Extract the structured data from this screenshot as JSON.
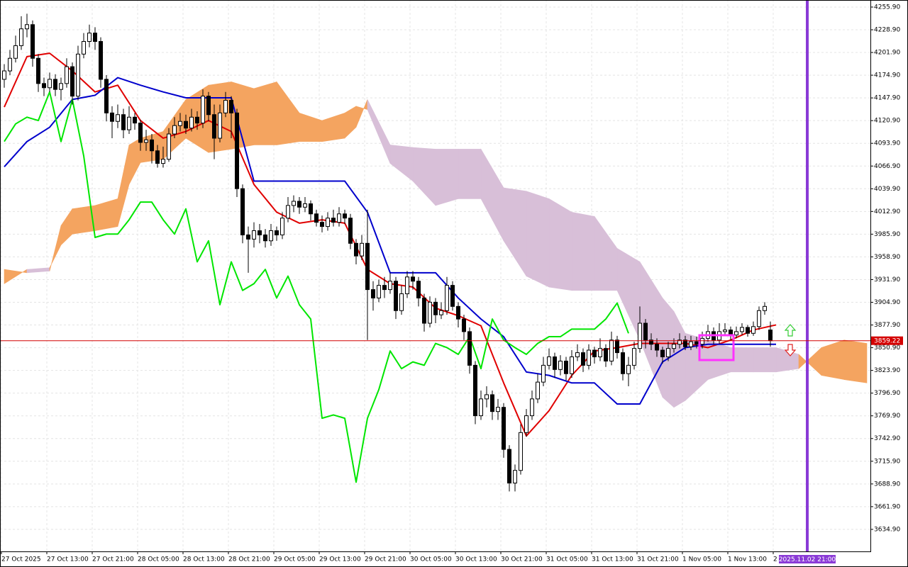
{
  "chart_data": {
    "type": "candlestick",
    "xlim": [
      -0.25,
      153.125
    ],
    "ylim": [
      3608.7,
      4264.3
    ],
    "grid": true,
    "up_color": "#ffffff",
    "down_color": "#000000",
    "xticks": [
      {
        "value": 0,
        "label": "27 Oct 2025"
      },
      {
        "value": 8,
        "label": "27 Oct 13:00"
      },
      {
        "value": 16,
        "label": "27 Oct 21:00"
      },
      {
        "value": 24,
        "label": "28 Oct 05:00"
      },
      {
        "value": 32,
        "label": "28 Oct 13:00"
      },
      {
        "value": 40,
        "label": "28 Oct 21:00"
      },
      {
        "value": 48,
        "label": "29 Oct 05:00"
      },
      {
        "value": 56,
        "label": "29 Oct 13:00"
      },
      {
        "value": 64,
        "label": "29 Oct 21:00"
      },
      {
        "value": 72,
        "label": "30 Oct 05:00"
      },
      {
        "value": 80,
        "label": "30 Oct 13:00"
      },
      {
        "value": 88,
        "label": "30 Oct 21:00"
      },
      {
        "value": 96,
        "label": "31 Oct 05:00"
      },
      {
        "value": 104,
        "label": "31 Oct 13:00"
      },
      {
        "value": 112,
        "label": "31 Oct 21:00"
      },
      {
        "value": 120,
        "label": "1 Nov 05:00"
      },
      {
        "value": 128,
        "label": "1 Nov 13:00"
      },
      {
        "value": 136,
        "label": "2"
      }
    ],
    "yticks": [
      {
        "value": 4255.9,
        "label": "4255.90"
      },
      {
        "value": 4228.9,
        "label": "4228.90"
      },
      {
        "value": 4201.9,
        "label": "4201.90"
      },
      {
        "value": 4174.9,
        "label": "4174.90"
      },
      {
        "value": 4147.9,
        "label": "4147.90"
      },
      {
        "value": 4120.9,
        "label": "4120.90"
      },
      {
        "value": 4093.9,
        "label": "4093.90"
      },
      {
        "value": 4066.9,
        "label": "4066.90"
      },
      {
        "value": 4039.9,
        "label": "4039.90"
      },
      {
        "value": 4012.9,
        "label": "4012.90"
      },
      {
        "value": 3985.9,
        "label": "3985.90"
      },
      {
        "value": 3958.9,
        "label": "3958.90"
      },
      {
        "value": 3931.9,
        "label": "3931.90"
      },
      {
        "value": 3904.9,
        "label": "3904.90"
      },
      {
        "value": 3877.9,
        "label": "3877.90"
      },
      {
        "value": 3850.9,
        "label": "3850.90"
      },
      {
        "value": 3823.9,
        "label": "3823.90"
      },
      {
        "value": 3796.9,
        "label": "3796.90"
      },
      {
        "value": 3769.9,
        "label": "3769.90"
      },
      {
        "value": 3742.9,
        "label": "3742.90"
      },
      {
        "value": 3715.9,
        "label": "3715.90"
      },
      {
        "value": 3688.9,
        "label": "3688.90"
      },
      {
        "value": 3661.9,
        "label": "3661.90"
      },
      {
        "value": 3634.9,
        "label": "3634.90"
      }
    ],
    "last_price": 3859.22,
    "last_price_color": "#d40000",
    "time_marker_label": "2025.11.02 21:00",
    "candles": {
      "x": [
        0,
        1,
        2,
        3,
        4,
        5,
        6,
        7,
        8,
        9,
        10,
        11,
        12,
        13,
        14,
        15,
        16,
        17,
        18,
        19,
        20,
        21,
        22,
        23,
        24,
        25,
        26,
        27,
        28,
        29,
        30,
        31,
        32,
        33,
        34,
        35,
        36,
        37,
        38,
        39,
        40,
        41,
        42,
        43,
        44,
        45,
        46,
        47,
        48,
        49,
        50,
        51,
        52,
        53,
        54,
        55,
        56,
        57,
        58,
        59,
        60,
        61,
        62,
        63,
        64,
        65,
        66,
        67,
        68,
        69,
        70,
        71,
        72,
        73,
        74,
        75,
        76,
        77,
        78,
        79,
        80,
        81,
        82,
        83,
        84,
        85,
        86,
        87,
        88,
        89,
        90,
        91,
        92,
        93,
        94,
        95,
        96,
        97,
        98,
        99,
        100,
        101,
        102,
        103,
        104,
        105,
        106,
        107,
        108,
        109,
        110,
        111,
        112,
        113,
        114,
        115,
        116,
        117,
        118,
        119,
        120,
        121,
        122,
        123,
        124,
        125,
        126,
        127,
        128,
        129,
        130,
        131,
        132,
        133,
        134,
        135
      ],
      "open": [
        4170,
        4180,
        4195,
        4210,
        4230,
        4235,
        4195,
        4165,
        4160,
        4170,
        4158,
        4165,
        4185,
        4150,
        4200,
        4215,
        4225,
        4215,
        4170,
        4130,
        4120,
        4128,
        4110,
        4125,
        4118,
        4095,
        4098,
        4085,
        4070,
        4075,
        4105,
        4115,
        4120,
        4112,
        4125,
        4118,
        4150,
        4128,
        4100,
        4130,
        4145,
        4130,
        4040,
        3985,
        3980,
        3990,
        3985,
        3978,
        3990,
        3985,
        4005,
        4020,
        4025,
        4018,
        4022,
        4010,
        4000,
        3995,
        4005,
        4000,
        4010,
        4005,
        3975,
        3960,
        3975,
        3920,
        3910,
        3925,
        3920,
        3930,
        3895,
        3915,
        3935,
        3930,
        3910,
        3880,
        3905,
        3890,
        3895,
        3925,
        3900,
        3885,
        3870,
        3830,
        3770,
        3790,
        3795,
        3775,
        3780,
        3730,
        3690,
        3705,
        3750,
        3770,
        3790,
        3810,
        3830,
        3840,
        3825,
        3835,
        3820,
        3840,
        3845,
        3830,
        3848,
        3840,
        3850,
        3835,
        3860,
        3845,
        3820,
        3830,
        3850,
        3880,
        3860,
        3855,
        3848,
        3840,
        3850,
        3855,
        3860,
        3852,
        3858,
        3855,
        3862,
        3870,
        3860,
        3870,
        3872,
        3866,
        3870,
        3875,
        3868,
        3876,
        3895,
        3872
      ],
      "high": [
        4188,
        4205,
        4222,
        4245,
        4248,
        4240,
        4200,
        4172,
        4178,
        4176,
        4172,
        4195,
        4190,
        4210,
        4225,
        4235,
        4232,
        4220,
        4175,
        4138,
        4140,
        4135,
        4138,
        4130,
        4122,
        4110,
        4105,
        4092,
        4090,
        4112,
        4125,
        4130,
        4128,
        4135,
        4132,
        4158,
        4155,
        4140,
        4140,
        4155,
        4150,
        4135,
        4045,
        3995,
        4000,
        3998,
        3992,
        3998,
        3995,
        4012,
        4030,
        4032,
        4030,
        4030,
        4026,
        4015,
        4008,
        4012,
        4015,
        4018,
        4015,
        4010,
        3980,
        3985,
        4015,
        3930,
        3932,
        3935,
        3940,
        3935,
        3925,
        3942,
        3942,
        3935,
        3915,
        3912,
        3910,
        3905,
        3935,
        3930,
        3905,
        3890,
        3875,
        3835,
        3800,
        3805,
        3800,
        3790,
        3785,
        3735,
        3712,
        3760,
        3778,
        3800,
        3820,
        3840,
        3850,
        3845,
        3842,
        3840,
        3848,
        3855,
        3850,
        3855,
        3852,
        3862,
        3855,
        3870,
        3865,
        3850,
        3840,
        3858,
        3900,
        3885,
        3868,
        3862,
        3852,
        3858,
        3862,
        3868,
        3865,
        3865,
        3864,
        3870,
        3878,
        3875,
        3880,
        3880,
        3876,
        3876,
        3880,
        3878,
        3882,
        3900,
        3905,
        3882
      ],
      "low": [
        4160,
        4175,
        4190,
        4205,
        4220,
        4185,
        4155,
        4150,
        4155,
        4150,
        4145,
        4160,
        4140,
        4145,
        4195,
        4208,
        4205,
        4160,
        4120,
        4100,
        4112,
        4100,
        4105,
        4110,
        4085,
        4085,
        4070,
        4065,
        4065,
        4072,
        4100,
        4108,
        4105,
        4108,
        4110,
        4112,
        4120,
        4075,
        4095,
        4125,
        4100,
        4030,
        3975,
        3940,
        3970,
        3975,
        3970,
        3972,
        3978,
        3980,
        4000,
        4012,
        4010,
        4012,
        4002,
        3995,
        3988,
        3990,
        3995,
        3995,
        3998,
        3968,
        3950,
        3955,
        3860,
        3895,
        3905,
        3910,
        3915,
        3885,
        3890,
        3910,
        3920,
        3900,
        3870,
        3875,
        3880,
        3885,
        3890,
        3895,
        3875,
        3860,
        3820,
        3760,
        3765,
        3780,
        3765,
        3765,
        3720,
        3680,
        3680,
        3700,
        3745,
        3765,
        3785,
        3805,
        3825,
        3815,
        3818,
        3812,
        3815,
        3835,
        3822,
        3825,
        3832,
        3835,
        3828,
        3830,
        3838,
        3812,
        3805,
        3825,
        3845,
        3850,
        3848,
        3840,
        3832,
        3835,
        3845,
        3850,
        3848,
        3848,
        3850,
        3850,
        3858,
        3855,
        3856,
        3865,
        3860,
        3862,
        3866,
        3864,
        3865,
        3872,
        3890,
        3852
      ],
      "close": [
        4180,
        4195,
        4210,
        4230,
        4235,
        4195,
        4165,
        4160,
        4170,
        4158,
        4165,
        4185,
        4150,
        4200,
        4215,
        4225,
        4215,
        4170,
        4130,
        4120,
        4128,
        4110,
        4125,
        4118,
        4095,
        4098,
        4085,
        4070,
        4075,
        4105,
        4115,
        4120,
        4112,
        4125,
        4118,
        4150,
        4128,
        4100,
        4130,
        4145,
        4130,
        4040,
        3985,
        3980,
        3990,
        3985,
        3978,
        3990,
        3985,
        4005,
        4020,
        4025,
        4018,
        4022,
        4010,
        4000,
        3995,
        4005,
        4000,
        4010,
        4005,
        3975,
        3960,
        3975,
        3920,
        3910,
        3925,
        3920,
        3930,
        3895,
        3915,
        3935,
        3930,
        3910,
        3880,
        3905,
        3890,
        3895,
        3925,
        3900,
        3885,
        3870,
        3830,
        3770,
        3790,
        3795,
        3775,
        3780,
        3730,
        3690,
        3705,
        3750,
        3770,
        3790,
        3810,
        3830,
        3840,
        3825,
        3835,
        3820,
        3840,
        3845,
        3830,
        3848,
        3840,
        3850,
        3835,
        3860,
        3845,
        3820,
        3830,
        3850,
        3880,
        3860,
        3855,
        3848,
        3840,
        3850,
        3855,
        3860,
        3852,
        3858,
        3855,
        3862,
        3870,
        3860,
        3870,
        3872,
        3866,
        3870,
        3875,
        3868,
        3876,
        3895,
        3900,
        3859.22
      ]
    },
    "cloud": {
      "up_color": "#f4a460",
      "down_color": "#d8bfd8",
      "x": [
        0,
        4,
        8,
        10,
        12,
        16,
        20,
        22,
        24,
        28,
        32,
        36,
        40,
        44,
        48,
        52,
        56,
        60,
        62,
        64,
        68,
        72,
        76,
        80,
        84,
        88,
        92,
        96,
        100,
        104,
        108,
        112,
        116,
        118,
        120,
        124,
        128,
        132,
        136,
        140,
        144,
        148,
        152
      ],
      "span_a": [
        3944,
        3940,
        3942,
        3996,
        4016,
        4020,
        4028,
        4092,
        4100,
        4108,
        4146,
        4163,
        4167,
        4159,
        4167,
        4130,
        4121,
        4130,
        4138,
        4134,
        4070,
        4049,
        4020,
        4028,
        4028,
        3978,
        3936,
        3923,
        3919,
        3919,
        3919,
        3860,
        3792,
        3780,
        3788,
        3813,
        3822,
        3822,
        3822,
        3826,
        3851,
        3860,
        3856
      ],
      "span_b": [
        3927,
        3944,
        3946,
        3973,
        3986,
        3990,
        3995,
        4045,
        4071,
        4075,
        4100,
        4083,
        4087,
        4092,
        4092,
        4096,
        4096,
        4100,
        4113,
        4146,
        4092,
        4089,
        4087,
        4087,
        4087,
        4041,
        4037,
        4028,
        4012,
        4007,
        3969,
        3953,
        3910,
        3894,
        3868,
        3860,
        3851,
        3851,
        3851,
        3843,
        3818,
        3813,
        3809
      ]
    },
    "lines": [
      {
        "color": "#e00000",
        "x": [
          0,
          4,
          8,
          12,
          16,
          20,
          24,
          28,
          32,
          36,
          40,
          44,
          48,
          52,
          56,
          60,
          64,
          68,
          72,
          76,
          80,
          84,
          88,
          92,
          96,
          100,
          104,
          108,
          112,
          116,
          120,
          124,
          128,
          132,
          136
        ],
        "values": [
          4137,
          4197,
          4201,
          4180,
          4155,
          4163,
          4121,
          4100,
          4108,
          4121,
          4108,
          4045,
          4012,
          3999,
          4003,
          3999,
          3944,
          3927,
          3923,
          3898,
          3889,
          3877,
          3809,
          3746,
          3776,
          3818,
          3847,
          3851,
          3856,
          3856,
          3856,
          3851,
          3860,
          3872,
          3878
        ]
      },
      {
        "color": "#0000cc",
        "x": [
          0,
          4,
          8,
          12,
          16,
          20,
          24,
          28,
          32,
          36,
          40,
          44,
          48,
          52,
          56,
          60,
          64,
          68,
          72,
          76,
          80,
          84,
          88,
          92,
          96,
          100,
          104,
          108,
          112,
          116,
          120,
          124,
          128,
          132,
          136
        ],
        "values": [
          4066,
          4096,
          4113,
          4146,
          4151,
          4172,
          4163,
          4155,
          4148,
          4148,
          4148,
          4049,
          4049,
          4049,
          4049,
          4049,
          4012,
          3940,
          3940,
          3940,
          3910,
          3885,
          3864,
          3822,
          3818,
          3809,
          3809,
          3784,
          3784,
          3834,
          3851,
          3855,
          3855,
          3855,
          3855
        ]
      },
      {
        "color": "#00e600",
        "x": [
          0,
          2,
          4,
          6,
          8,
          10,
          12,
          14,
          16,
          18,
          20,
          22,
          24,
          26,
          28,
          30,
          32,
          34,
          36,
          38,
          40,
          42,
          44,
          46,
          48,
          50,
          52,
          54,
          56,
          58,
          60,
          62,
          64,
          66,
          68,
          70,
          72,
          74,
          76,
          78,
          80,
          82,
          84,
          86,
          88,
          90,
          92,
          94,
          96,
          98,
          100,
          102,
          104,
          106,
          108,
          110
        ],
        "values": [
          4096,
          4117,
          4125,
          4121,
          4155,
          4096,
          4146,
          4079,
          3982,
          3986,
          3986,
          4003,
          4024,
          4024,
          4003,
          3986,
          4016,
          3953,
          3978,
          3902,
          3953,
          3919,
          3927,
          3944,
          3910,
          3936,
          3902,
          3885,
          3767,
          3771,
          3767,
          3691,
          3767,
          3801,
          3847,
          3826,
          3834,
          3830,
          3856,
          3851,
          3843,
          3864,
          3826,
          3885,
          3860,
          3851,
          3843,
          3856,
          3864,
          3864,
          3873,
          3873,
          3873,
          3885,
          3904,
          3868
        ]
      }
    ]
  }
}
